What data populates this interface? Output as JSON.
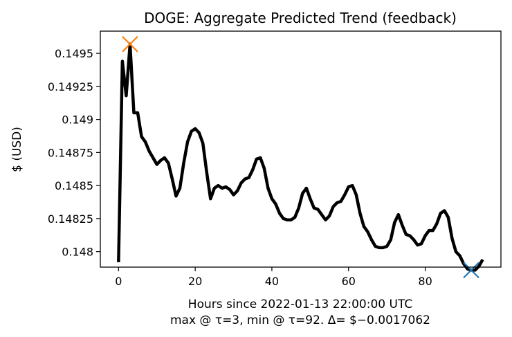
{
  "chart_data": {
    "type": "line",
    "title": "DOGE: Aggregate Predicted Trend (feedback)",
    "xlabel": "Hours since 2022-01-13 22:00:00 UTC",
    "xlabel_line2": "max @ τ=3, min @ τ=92. Δ= $−0.0017062",
    "ylabel": "$ (USD)",
    "xlim": [
      -4.75,
      99.75
    ],
    "ylim": [
      0.147883,
      0.149668
    ],
    "x_ticks": [
      0,
      20,
      40,
      60,
      80
    ],
    "x_tick_labels": [
      "0",
      "20",
      "40",
      "60",
      "80"
    ],
    "y_ticks": [
      0.148,
      0.14825,
      0.1485,
      0.14875,
      0.149,
      0.14925,
      0.1495
    ],
    "y_tick_labels": [
      "0.148",
      "0.14825",
      "0.1485",
      "0.14875",
      "0.149",
      "0.14925",
      "0.1495"
    ],
    "grid": false,
    "series": [
      {
        "color": "#000000",
        "x": [
          0,
          1,
          2,
          3,
          4,
          5,
          6,
          7,
          8,
          9,
          10,
          11,
          12,
          13,
          14,
          15,
          16,
          17,
          18,
          19,
          20,
          21,
          22,
          23,
          24,
          25,
          26,
          27,
          28,
          29,
          30,
          31,
          32,
          33,
          34,
          35,
          36,
          37,
          38,
          39,
          40,
          41,
          42,
          43,
          44,
          45,
          46,
          47,
          48,
          49,
          50,
          51,
          52,
          53,
          54,
          55,
          56,
          57,
          58,
          59,
          60,
          61,
          62,
          63,
          64,
          65,
          66,
          67,
          68,
          69,
          70,
          71,
          72,
          73,
          74,
          75,
          76,
          77,
          78,
          79,
          80,
          81,
          82,
          83,
          84,
          85,
          86,
          87,
          88,
          89,
          90,
          91,
          92,
          93,
          94,
          95
        ],
        "values": [
          0.14792,
          0.14944,
          0.14918,
          0.14957,
          0.14905,
          0.14905,
          0.14887,
          0.14883,
          0.14876,
          0.14871,
          0.14866,
          0.14869,
          0.14871,
          0.14867,
          0.14855,
          0.14842,
          0.14848,
          0.14867,
          0.14883,
          0.14891,
          0.14893,
          0.1489,
          0.14882,
          0.1486,
          0.1484,
          0.14848,
          0.1485,
          0.14848,
          0.14849,
          0.14847,
          0.14843,
          0.14846,
          0.14852,
          0.14855,
          0.14856,
          0.14862,
          0.1487,
          0.14871,
          0.14863,
          0.14848,
          0.1484,
          0.14836,
          0.14829,
          0.14825,
          0.14824,
          0.14824,
          0.14826,
          0.14833,
          0.14844,
          0.14848,
          0.1484,
          0.14833,
          0.14832,
          0.14828,
          0.14824,
          0.14827,
          0.14834,
          0.14837,
          0.14838,
          0.14843,
          0.14849,
          0.1485,
          0.14843,
          0.14829,
          0.14819,
          0.14815,
          0.14809,
          0.14804,
          0.14803,
          0.14803,
          0.14804,
          0.14809,
          0.14822,
          0.14828,
          0.1482,
          0.14813,
          0.14812,
          0.14809,
          0.14805,
          0.14806,
          0.14812,
          0.14816,
          0.14816,
          0.14821,
          0.14829,
          0.14831,
          0.14826,
          0.1481,
          0.148,
          0.14797,
          0.14791,
          0.14787,
          0.14786,
          0.14786,
          0.14789,
          0.14794
        ]
      }
    ],
    "markers": [
      {
        "label": "max",
        "x": 3,
        "y": 0.14957,
        "color": "#ff7f0e",
        "symbol": "x"
      },
      {
        "label": "min",
        "x": 92,
        "y": 0.14786,
        "color": "#1f77b4",
        "symbol": "x"
      }
    ]
  }
}
